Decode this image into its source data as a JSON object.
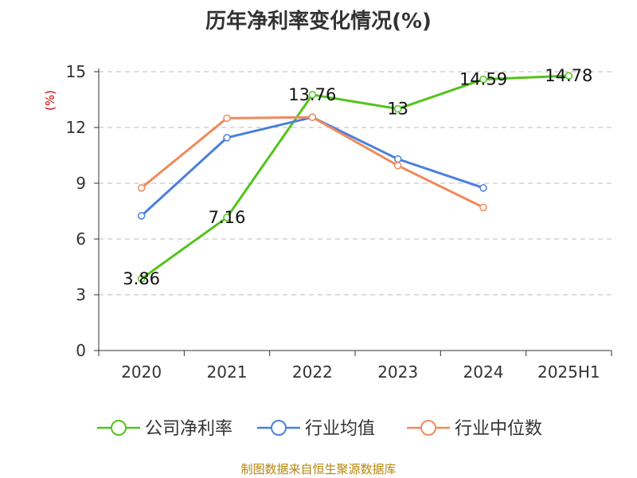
{
  "chart_data": {
    "type": "line",
    "title": "历年净利率变化情况(%)",
    "ylabel": "(%)",
    "xlabel": "",
    "categories": [
      "2020",
      "2021",
      "2022",
      "2023",
      "2024",
      "2025H1"
    ],
    "ylim": [
      0,
      15
    ],
    "yticks": [
      0,
      3,
      6,
      9,
      12,
      15
    ],
    "grid": true,
    "legend_position": "bottom",
    "series": [
      {
        "name": "公司净利率",
        "color": "#52c41a",
        "values": [
          3.86,
          7.16,
          13.76,
          13,
          14.59,
          14.78
        ],
        "data_labels": [
          "3.86",
          "7.16",
          "13.76",
          "13",
          "14.59",
          "14.78"
        ]
      },
      {
        "name": "行业均值",
        "color": "#4a7fdc",
        "values": [
          7.25,
          11.45,
          12.55,
          10.3,
          8.75,
          null
        ]
      },
      {
        "name": "行业中位数",
        "color": "#f08a5d",
        "values": [
          8.75,
          12.5,
          12.55,
          9.95,
          7.7,
          null
        ]
      }
    ]
  },
  "source": "制图数据来自恒生聚源数据库",
  "colors": {
    "axis": "#333333",
    "grid": "#bbbbbb",
    "ylabel": "#cc0000"
  }
}
